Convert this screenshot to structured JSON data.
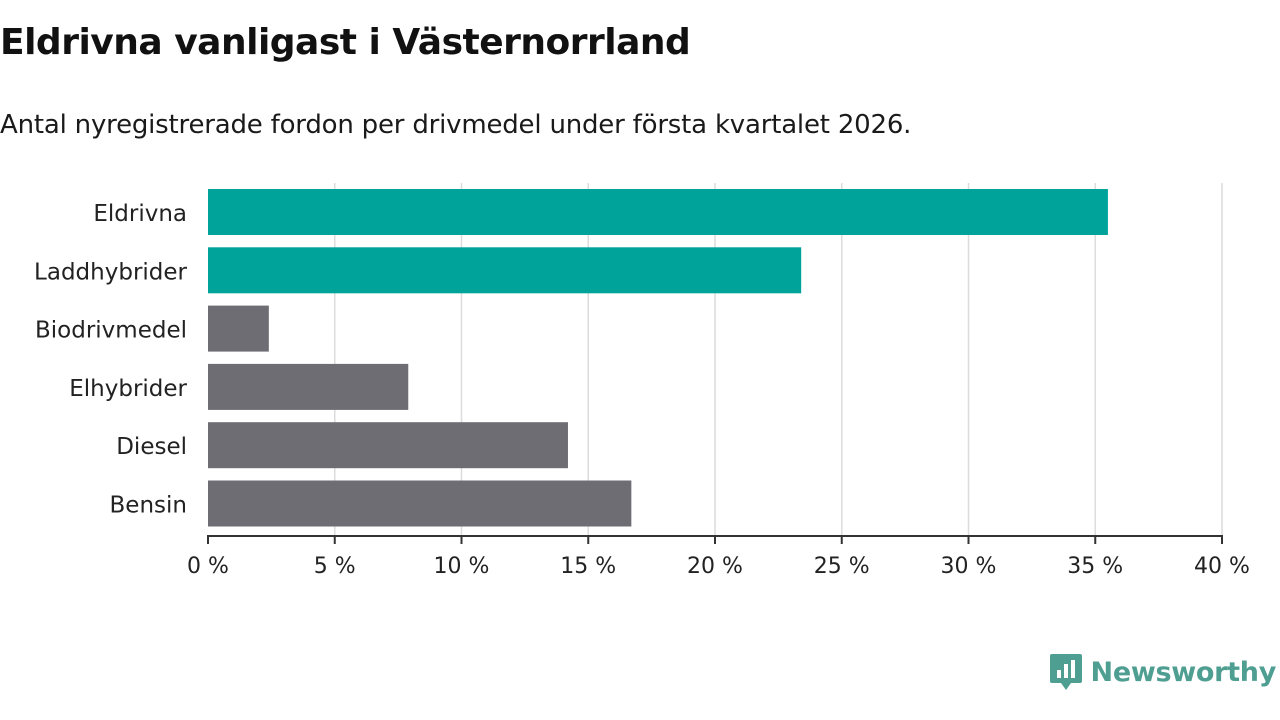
{
  "title": "Eldrivna vanligast i Västernorrland",
  "subtitle": "Antal nyregistrerade fordon per drivmedel under första kvartalet 2026.",
  "brand": {
    "name": "Newsworthy",
    "logo_icon": "newsworthy-logo-icon"
  },
  "colors": {
    "highlight": "#00a39a",
    "default": "#6e6d73",
    "grid": "#dcdcdc",
    "axis": "#333333",
    "brand": "#4f9e92"
  },
  "chart_data": {
    "type": "bar",
    "orientation": "horizontal",
    "categories": [
      "Eldrivna",
      "Laddhybrider",
      "Biodrivmedel",
      "Elhybrider",
      "Diesel",
      "Bensin"
    ],
    "values": [
      35.5,
      23.4,
      2.4,
      7.9,
      14.2,
      16.7
    ],
    "highlighted": [
      true,
      true,
      false,
      false,
      false,
      false
    ],
    "unit": "%",
    "xlim": [
      0,
      40
    ],
    "xticks": [
      0,
      5,
      10,
      15,
      20,
      25,
      30,
      35,
      40
    ],
    "xtick_labels": [
      "0 %",
      "5 %",
      "10 %",
      "15 %",
      "20 %",
      "25 %",
      "30 %",
      "35 %",
      "40 %"
    ],
    "xlabel": "",
    "ylabel": "",
    "grid": true
  }
}
